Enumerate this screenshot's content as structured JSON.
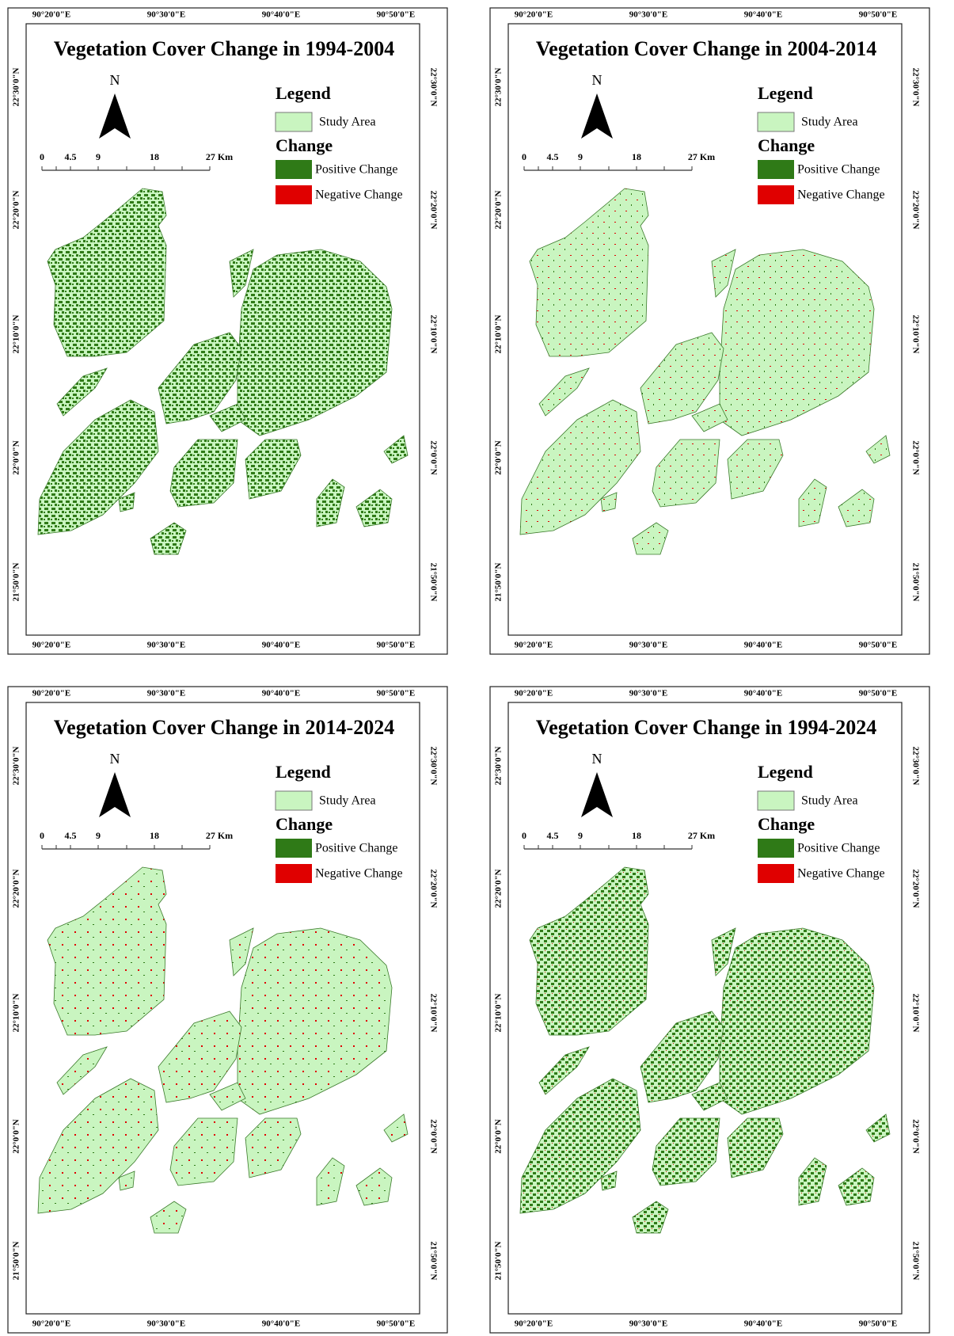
{
  "panels": [
    {
      "title": "Vegetation Cover Change in 1994-2004"
    },
    {
      "title": "Vegetation Cover Change in 2004-2014"
    },
    {
      "title": "Vegetation Cover Change in 2014-2024"
    },
    {
      "title": "Vegetation Cover Change in 1994-2024"
    }
  ],
  "lon_labels": [
    "90°20'0\"E",
    "90°30'0\"E",
    "90°40'0\"E",
    "90°50'0\"E"
  ],
  "lat_labels": [
    "22°30'0\"N",
    "22°20'0\"N",
    "22°10'0\"N",
    "22°0'0\"N",
    "21°50'0\"N"
  ],
  "north": "N",
  "scale_labels": [
    "0",
    "4.5",
    "9",
    "18",
    "27 Km"
  ],
  "legend": {
    "title": "Legend",
    "study_area": "Study Area",
    "change": "Change",
    "positive": "Positive Change",
    "negative": "Negative Change"
  }
}
